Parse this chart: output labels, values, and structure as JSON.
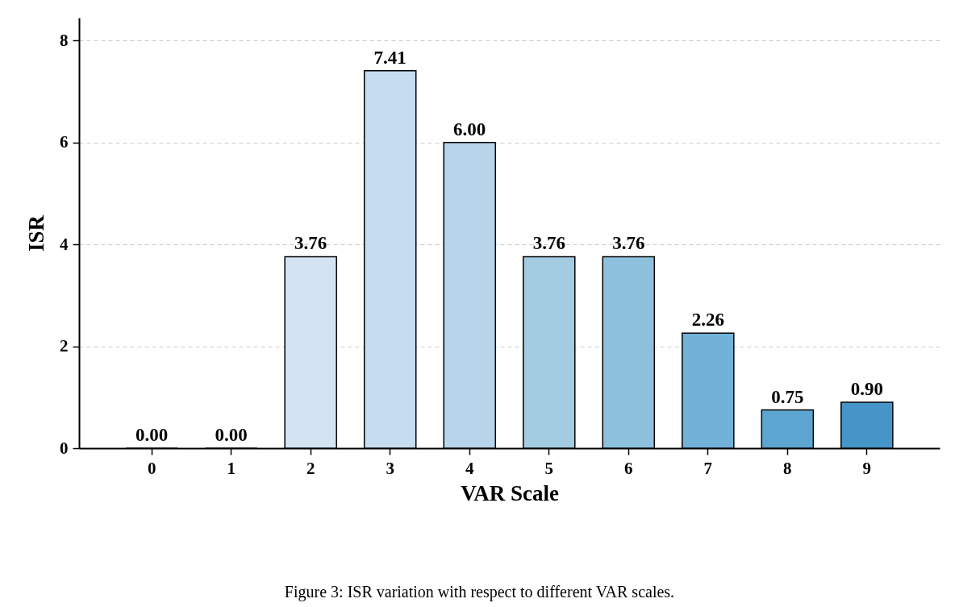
{
  "chart_data": {
    "type": "bar",
    "xlabel": "VAR Scale",
    "ylabel": "ISR",
    "categories": [
      "0",
      "1",
      "2",
      "3",
      "4",
      "5",
      "6",
      "7",
      "8",
      "9"
    ],
    "values": [
      0,
      0,
      3.76,
      7.41,
      6.0,
      3.76,
      3.76,
      2.26,
      0.75,
      0.9
    ],
    "value_labels": [
      "0.00",
      "0.00",
      "3.76",
      "7.41",
      "6.00",
      "3.76",
      "3.76",
      "2.26",
      "0.75",
      "0.90"
    ],
    "colors": [
      "#000000",
      "#000000",
      "#d3e3f2",
      "#c6dcef",
      "#b7d4ea",
      "#a3cbe2",
      "#8dc0dd",
      "#73b2d8",
      "#5ca5d0",
      "#4695c8"
    ],
    "ylim": [
      0,
      8.45
    ],
    "yticks": [
      0,
      2,
      4,
      6,
      8
    ],
    "grid": "y",
    "annotations": [
      "Figure 3: ISR variation with respect to different VAR scales."
    ]
  }
}
